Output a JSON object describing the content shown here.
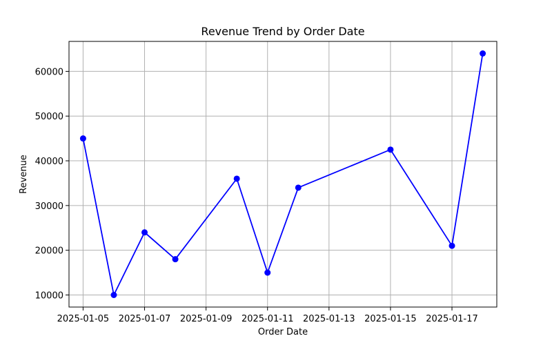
{
  "chart_data": {
    "type": "line",
    "title": "Revenue Trend by Order Date",
    "xlabel": "Order Date",
    "ylabel": "Revenue",
    "x_type": "date",
    "xlim": [
      "2025-01-04T13:00",
      "2025-01-18T11:00"
    ],
    "ylim": [
      7300,
      66700
    ],
    "x_ticks": [
      "2025-01-05",
      "2025-01-07",
      "2025-01-09",
      "2025-01-11",
      "2025-01-13",
      "2025-01-15",
      "2025-01-17"
    ],
    "y_ticks": [
      10000,
      20000,
      30000,
      40000,
      50000,
      60000
    ],
    "grid": true,
    "series": [
      {
        "color": "#0000ff",
        "marker": "circle",
        "points": [
          {
            "x": "2025-01-05",
            "y": 45000
          },
          {
            "x": "2025-01-06",
            "y": 10000
          },
          {
            "x": "2025-01-07",
            "y": 24000
          },
          {
            "x": "2025-01-08",
            "y": 18000
          },
          {
            "x": "2025-01-10",
            "y": 36000
          },
          {
            "x": "2025-01-11",
            "y": 15000
          },
          {
            "x": "2025-01-12",
            "y": 34000
          },
          {
            "x": "2025-01-15",
            "y": 42500
          },
          {
            "x": "2025-01-17",
            "y": 21000
          },
          {
            "x": "2025-01-18",
            "y": 64000
          }
        ]
      }
    ]
  }
}
